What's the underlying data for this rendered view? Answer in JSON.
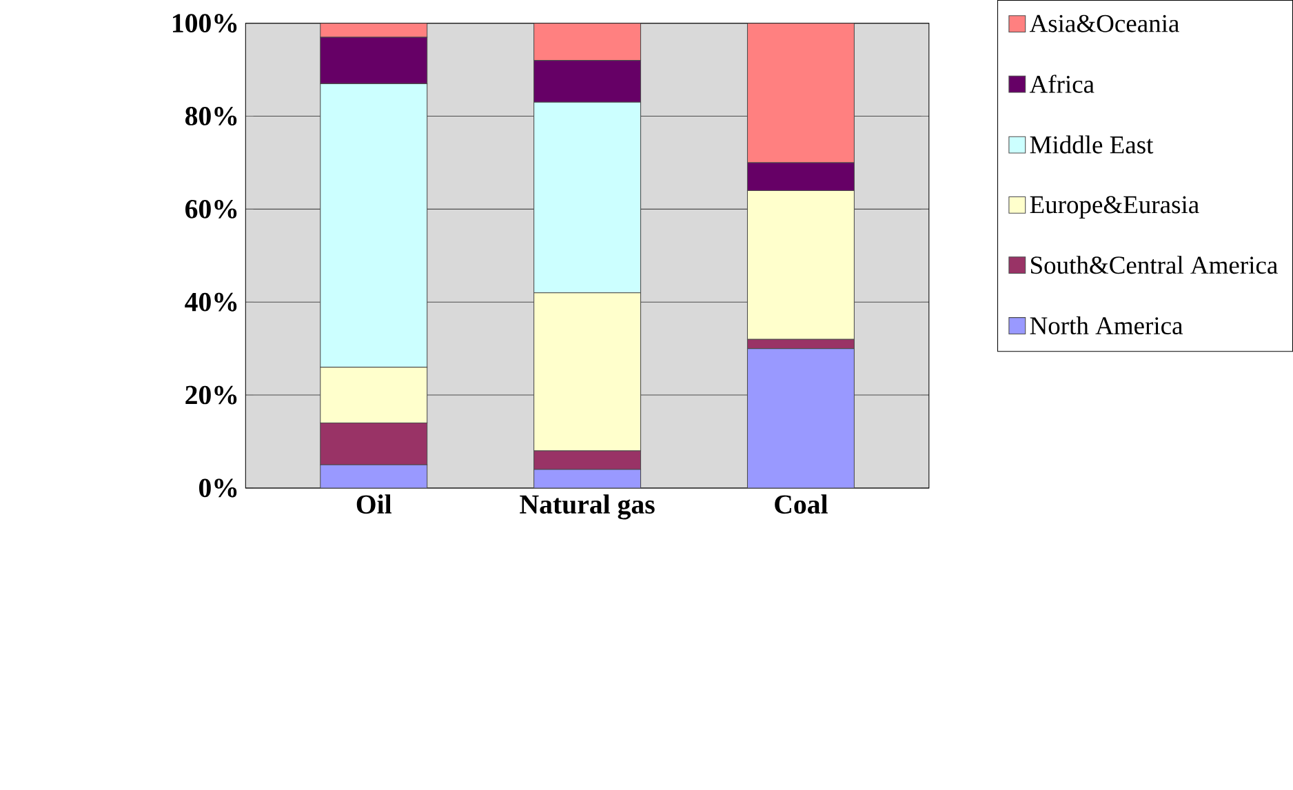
{
  "chart_data": {
    "type": "bar",
    "stacked": true,
    "categories": [
      "Oil",
      "Natural gas",
      "Coal"
    ],
    "series": [
      {
        "name": "North America",
        "color": "#9999ff",
        "values": [
          5,
          4,
          30
        ]
      },
      {
        "name": "South&Central America",
        "color": "#993366",
        "values": [
          9,
          4,
          2
        ]
      },
      {
        "name": "Europe&Eurasia",
        "color": "#ffffcc",
        "values": [
          12,
          34,
          32
        ]
      },
      {
        "name": "Middle East",
        "color": "#ccffff",
        "values": [
          61,
          41,
          0
        ]
      },
      {
        "name": "Africa",
        "color": "#660066",
        "values": [
          10,
          9,
          6
        ]
      },
      {
        "name": "Asia&Oceania",
        "color": "#ff8080",
        "values": [
          3,
          8,
          30
        ]
      }
    ],
    "ylim": [
      0,
      100
    ],
    "yticks": [
      {
        "value": 0,
        "label": "0%"
      },
      {
        "value": 20,
        "label": "20%"
      },
      {
        "value": 40,
        "label": "40%"
      },
      {
        "value": 60,
        "label": "60%"
      },
      {
        "value": 80,
        "label": "80%"
      },
      {
        "value": 100,
        "label": "100%"
      }
    ],
    "grid": "y",
    "legend": "right"
  }
}
